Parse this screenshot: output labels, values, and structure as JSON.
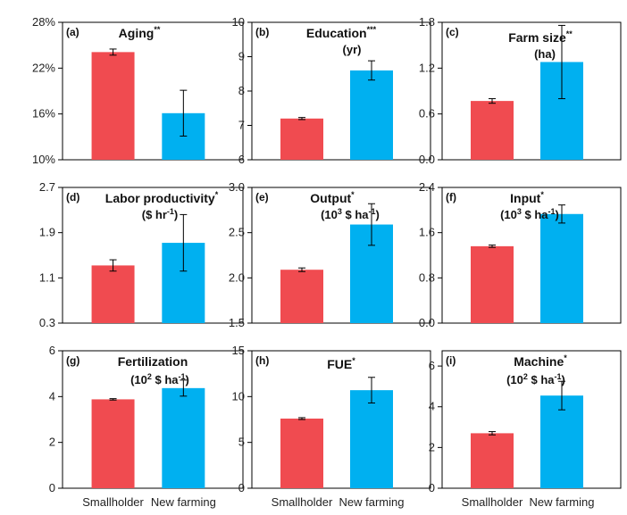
{
  "chart_data": [
    {
      "type": "bar",
      "label": "(a)",
      "title": "Aging",
      "sig": "**",
      "unit": "",
      "categories": [
        "Smallholder",
        "New farming"
      ],
      "values": [
        24.1,
        16.1
      ],
      "errors": [
        0.4,
        3.0
      ],
      "ylim": [
        10,
        28
      ],
      "yticks": [
        10,
        16,
        22,
        28
      ],
      "ytick_labels": [
        "10%",
        "16%",
        "22%",
        "28%"
      ],
      "colors": [
        "#f04b50",
        "#00b0f0"
      ]
    },
    {
      "type": "bar",
      "label": "(b)",
      "title": "Education",
      "sig": "***",
      "unit": "(yr)",
      "categories": [
        "Smallholder",
        "New farming"
      ],
      "values": [
        7.2,
        8.6
      ],
      "errors": [
        0.03,
        0.28
      ],
      "ylim": [
        6,
        10
      ],
      "yticks": [
        6,
        7,
        8,
        9,
        10
      ],
      "ytick_labels": [
        "6",
        "7",
        "8",
        "9",
        "10"
      ],
      "colors": [
        "#f04b50",
        "#00b0f0"
      ]
    },
    {
      "type": "bar",
      "label": "(c)",
      "title": "Farm size",
      "sig": "**",
      "unit": "(ha)",
      "categories": [
        "Smallholder",
        "New farming"
      ],
      "values": [
        0.77,
        1.28
      ],
      "errors": [
        0.03,
        0.48
      ],
      "ylim": [
        0,
        1.8
      ],
      "yticks": [
        0,
        0.6,
        1.2,
        1.8
      ],
      "ytick_labels": [
        "0.0",
        "0.6",
        "1.2",
        "1.8"
      ],
      "colors": [
        "#f04b50",
        "#00b0f0"
      ]
    },
    {
      "type": "bar",
      "label": "(d)",
      "title": "Labor productivity",
      "sig": "*",
      "unit": "($ hr-1)",
      "categories": [
        "Smallholder",
        "New farming"
      ],
      "values": [
        1.32,
        1.72
      ],
      "errors": [
        0.1,
        0.5
      ],
      "ylim": [
        0.3,
        2.7
      ],
      "yticks": [
        0.3,
        1.1,
        1.9,
        2.7
      ],
      "ytick_labels": [
        "0.3",
        "1.1",
        "1.9",
        "2.7"
      ],
      "colors": [
        "#f04b50",
        "#00b0f0"
      ]
    },
    {
      "type": "bar",
      "label": "(e)",
      "title": "Output",
      "sig": "*",
      "unit": "(103 $ ha-1)",
      "categories": [
        "Smallholder",
        "New farming"
      ],
      "values": [
        2.09,
        2.59
      ],
      "errors": [
        0.02,
        0.23
      ],
      "ylim": [
        1.5,
        3.0
      ],
      "yticks": [
        1.5,
        2.0,
        2.5,
        3.0
      ],
      "ytick_labels": [
        "1.5",
        "2.0",
        "2.5",
        "3.0"
      ],
      "colors": [
        "#f04b50",
        "#00b0f0"
      ]
    },
    {
      "type": "bar",
      "label": "(f)",
      "title": "Input",
      "sig": "*",
      "unit": "(103 $ ha-1)",
      "categories": [
        "Smallholder",
        "New farming"
      ],
      "values": [
        1.36,
        1.93
      ],
      "errors": [
        0.02,
        0.16
      ],
      "ylim": [
        0,
        2.4
      ],
      "yticks": [
        0,
        0.8,
        1.6,
        2.4
      ],
      "ytick_labels": [
        "0.0",
        "0.8",
        "1.6",
        "2.4"
      ],
      "colors": [
        "#f04b50",
        "#00b0f0"
      ]
    },
    {
      "type": "bar",
      "label": "(g)",
      "title": "Fertilization",
      "sig": "",
      "unit": "(102 $ ha-1)",
      "categories": [
        "Smallholder",
        "New farming"
      ],
      "values": [
        3.88,
        4.37
      ],
      "errors": [
        0.03,
        0.35
      ],
      "ylim": [
        0,
        6
      ],
      "yticks": [
        0,
        2,
        4,
        6
      ],
      "ytick_labels": [
        "0",
        "2",
        "4",
        "6"
      ],
      "colors": [
        "#f04b50",
        "#00b0f0"
      ]
    },
    {
      "type": "bar",
      "label": "(h)",
      "title": "FUE",
      "sig": "*",
      "unit": "",
      "categories": [
        "Smallholder",
        "New farming"
      ],
      "values": [
        7.6,
        10.7
      ],
      "errors": [
        0.1,
        1.4
      ],
      "ylim": [
        0,
        15
      ],
      "yticks": [
        0,
        5,
        10,
        15
      ],
      "ytick_labels": [
        "0",
        "5",
        "10",
        "15"
      ],
      "colors": [
        "#f04b50",
        "#00b0f0"
      ]
    },
    {
      "type": "bar",
      "label": "(i)",
      "title": "Machine",
      "sig": "*",
      "unit": "(102 $ ha-1)",
      "categories": [
        "Smallholder",
        "New farming"
      ],
      "values": [
        2.7,
        4.55
      ],
      "errors": [
        0.08,
        0.7
      ],
      "ylim": [
        0,
        6.75
      ],
      "yticks": [
        0,
        2,
        4,
        6
      ],
      "ytick_labels": [
        "0",
        "2",
        "4",
        "6"
      ],
      "colors": [
        "#f04b50",
        "#00b0f0"
      ]
    }
  ]
}
